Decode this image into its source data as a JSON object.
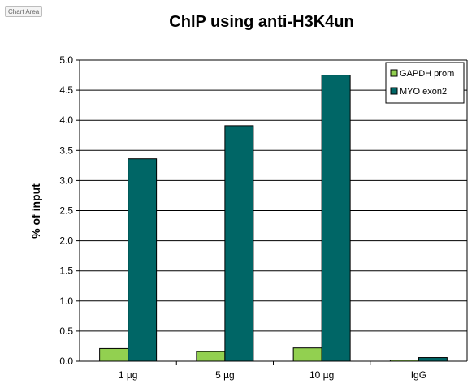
{
  "chart_area_label": "Chart Area",
  "chart_data": {
    "type": "bar",
    "title": "ChIP using anti-H3K4un",
    "ylabel": "% of input",
    "xlabel": "",
    "categories": [
      "1 µg",
      "5 µg",
      "10 µg",
      "IgG"
    ],
    "series": [
      {
        "name": "GAPDH prom",
        "color": "#92d050",
        "values": [
          0.21,
          0.16,
          0.22,
          0.02
        ]
      },
      {
        "name": "MYO exon2",
        "color": "#006666",
        "values": [
          3.36,
          3.91,
          4.75,
          0.06
        ]
      }
    ],
    "ylim": [
      0,
      5.0
    ],
    "yticks": [
      "0.0",
      "0.5",
      "1.0",
      "1.5",
      "2.0",
      "2.5",
      "3.0",
      "3.5",
      "4.0",
      "4.5",
      "5.0"
    ],
    "grid": true,
    "legend": "top-right"
  }
}
